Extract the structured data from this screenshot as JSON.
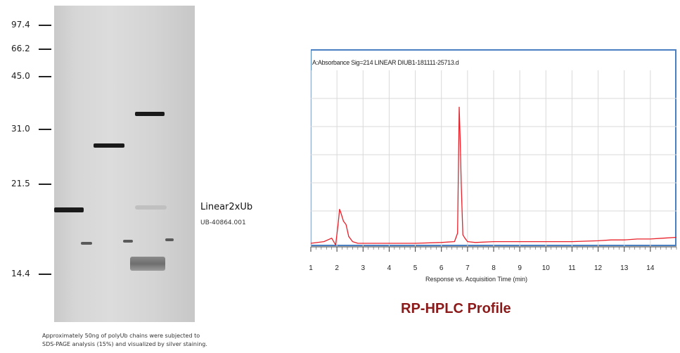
{
  "gel": {
    "markers": [
      "97.4",
      "66.2",
      "45.0",
      "31.0",
      "21.5",
      "14.4"
    ],
    "product_name": "Linear2xUb",
    "product_code": "UB-40864.001",
    "caption_line1": "Approximately 50ng of polyUb chains were subjected to",
    "caption_line2": "SDS-PAGE analysis (15%) and visualized by silver staining."
  },
  "chart_data": {
    "type": "line",
    "title": "A:Absorbance Sig=214 LINEAR DIUB1-181111-25713.d",
    "xlabel": "Response vs. Acquisition Time (min)",
    "ylabel": "",
    "x_ticks": [
      "1",
      "2",
      "3",
      "4",
      "5",
      "6",
      "7",
      "8",
      "9",
      "10",
      "11",
      "12",
      "13",
      "14"
    ],
    "xlim": [
      1,
      15
    ],
    "ylim": [
      0,
      1
    ],
    "grid": true,
    "line_color": "#e8202a",
    "series": [
      {
        "x": [
          1.0,
          1.5,
          1.8,
          1.95,
          2.05,
          2.1,
          2.15,
          2.25,
          2.35,
          2.45,
          2.6,
          2.8,
          3.0,
          4.0,
          5.0,
          6.0,
          6.5,
          6.62,
          6.68,
          6.72,
          6.76,
          6.82,
          6.9,
          7.0,
          7.3,
          8.0,
          9.0,
          10.0,
          11.0,
          12.0,
          12.5,
          13.0,
          13.5,
          14.0,
          14.5,
          15.0
        ],
        "y": [
          0.0,
          0.01,
          0.03,
          -0.01,
          0.12,
          0.2,
          0.18,
          0.13,
          0.11,
          0.04,
          0.01,
          0.0,
          0.0,
          0.0,
          0.0,
          0.005,
          0.01,
          0.06,
          0.8,
          0.6,
          0.35,
          0.05,
          0.03,
          0.01,
          0.005,
          0.01,
          0.01,
          0.01,
          0.01,
          0.015,
          0.02,
          0.02,
          0.025,
          0.025,
          0.03,
          0.035
        ]
      }
    ]
  },
  "hplc_caption": "RP-HPLC Profile"
}
